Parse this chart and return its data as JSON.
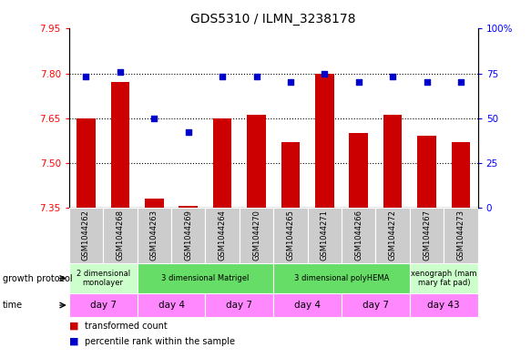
{
  "title": "GDS5310 / ILMN_3238178",
  "samples": [
    "GSM1044262",
    "GSM1044268",
    "GSM1044263",
    "GSM1044269",
    "GSM1044264",
    "GSM1044270",
    "GSM1044265",
    "GSM1044271",
    "GSM1044266",
    "GSM1044272",
    "GSM1044267",
    "GSM1044273"
  ],
  "bar_values": [
    7.65,
    7.77,
    7.38,
    7.355,
    7.65,
    7.66,
    7.57,
    7.8,
    7.6,
    7.66,
    7.59,
    7.57
  ],
  "bar_base": 7.35,
  "dot_values": [
    73,
    76,
    50,
    42,
    73,
    73,
    70,
    75,
    70,
    73,
    70,
    70
  ],
  "ylim_left": [
    7.35,
    7.95
  ],
  "ylim_right": [
    0,
    100
  ],
  "yticks_left": [
    7.35,
    7.5,
    7.65,
    7.8,
    7.95
  ],
  "yticks_right": [
    0,
    25,
    50,
    75,
    100
  ],
  "bar_color": "#cc0000",
  "dot_color": "#0000cc",
  "bar_width": 0.55,
  "growth_protocol_groups": [
    {
      "label": "2 dimensional\nmonolayer",
      "start": 0,
      "end": 2,
      "color": "#ccffcc"
    },
    {
      "label": "3 dimensional Matrigel",
      "start": 2,
      "end": 6,
      "color": "#66dd66"
    },
    {
      "label": "3 dimensional polyHEMA",
      "start": 6,
      "end": 10,
      "color": "#66dd66"
    },
    {
      "label": "xenograph (mam\nmary fat pad)",
      "start": 10,
      "end": 12,
      "color": "#ccffcc"
    }
  ],
  "time_groups": [
    {
      "label": "day 7",
      "start": 0,
      "end": 2,
      "color": "#ff88ff"
    },
    {
      "label": "day 4",
      "start": 2,
      "end": 4,
      "color": "#ff88ff"
    },
    {
      "label": "day 7",
      "start": 4,
      "end": 6,
      "color": "#ff88ff"
    },
    {
      "label": "day 4",
      "start": 6,
      "end": 8,
      "color": "#ff88ff"
    },
    {
      "label": "day 7",
      "start": 8,
      "end": 10,
      "color": "#ff88ff"
    },
    {
      "label": "day 43",
      "start": 10,
      "end": 12,
      "color": "#ff88ff"
    }
  ]
}
